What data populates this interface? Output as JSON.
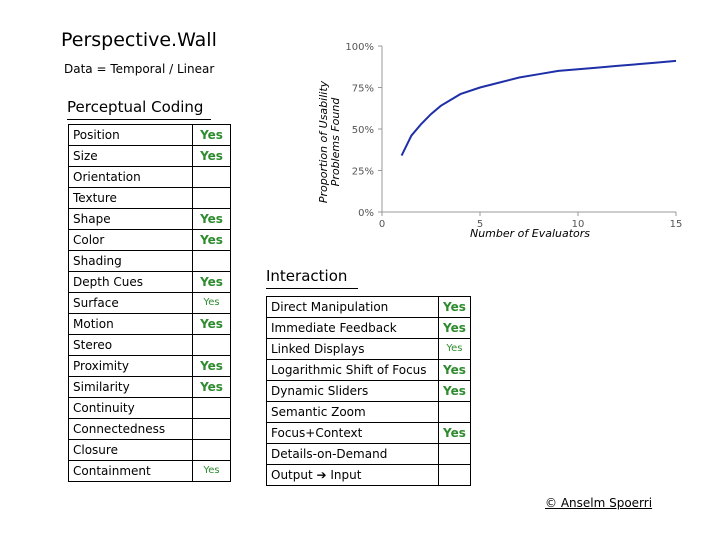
{
  "title": "Perspective.Wall",
  "subtitle": "Data = Temporal / Linear",
  "perceptual": {
    "heading": "Perceptual Coding",
    "rows": [
      {
        "label": "Position",
        "value": "Yes"
      },
      {
        "label": "Size",
        "value": "Yes"
      },
      {
        "label": "Orientation",
        "value": ""
      },
      {
        "label": "Texture",
        "value": ""
      },
      {
        "label": "Shape",
        "value": "Yes"
      },
      {
        "label": "Color",
        "value": "Yes"
      },
      {
        "label": "Shading",
        "value": ""
      },
      {
        "label": "Depth Cues",
        "value": "Yes"
      },
      {
        "label": "Surface",
        "value": "Yes"
      },
      {
        "label": "Motion",
        "value": "Yes"
      },
      {
        "label": "Stereo",
        "value": ""
      },
      {
        "label": "Proximity",
        "value": "Yes"
      },
      {
        "label": "Similarity",
        "value": "Yes"
      },
      {
        "label": "Continuity",
        "value": ""
      },
      {
        "label": "Connectedness",
        "value": ""
      },
      {
        "label": "Closure",
        "value": ""
      },
      {
        "label": "Containment",
        "value": "Yes"
      }
    ]
  },
  "interaction": {
    "heading": "Interaction",
    "rows": [
      {
        "label": "Direct Manipulation",
        "value": "Yes"
      },
      {
        "label": "Immediate Feedback",
        "value": "Yes"
      },
      {
        "label": "Linked Displays",
        "value": "Yes"
      },
      {
        "label": "Logarithmic Shift of Focus",
        "value": "Yes"
      },
      {
        "label": "Dynamic Sliders",
        "value": "Yes"
      },
      {
        "label": "Semantic Zoom",
        "value": ""
      },
      {
        "label": "Focus+Context",
        "value": "Yes"
      },
      {
        "label": "Details-on-Demand",
        "value": ""
      },
      {
        "label": "Output ➔ Input",
        "value": ""
      }
    ]
  },
  "chart_data": {
    "type": "line",
    "xlabel": "Number of Evaluators",
    "ylabel": "Proportion of Usability Problems Found",
    "x_ticks": [
      "0",
      "5",
      "10",
      "15"
    ],
    "y_ticks": [
      "0%",
      "25%",
      "50%",
      "75%",
      "100%"
    ],
    "xlim": [
      0,
      15
    ],
    "ylim": [
      0,
      100
    ],
    "grid": false,
    "series": [
      {
        "x": [
          1,
          1.5,
          2,
          2.5,
          3,
          4,
          5,
          6,
          7,
          8,
          9,
          10,
          11,
          12,
          13,
          14,
          15
        ],
        "y": [
          34,
          46,
          53,
          59,
          64,
          71,
          75,
          78,
          81,
          83,
          85,
          86,
          87,
          88,
          89,
          90,
          91
        ]
      }
    ],
    "colors": {
      "line": "#1f2fa8",
      "axis": "#999999",
      "yes": "#2e8b2e"
    }
  },
  "credit": "© Anselm Spoerri"
}
